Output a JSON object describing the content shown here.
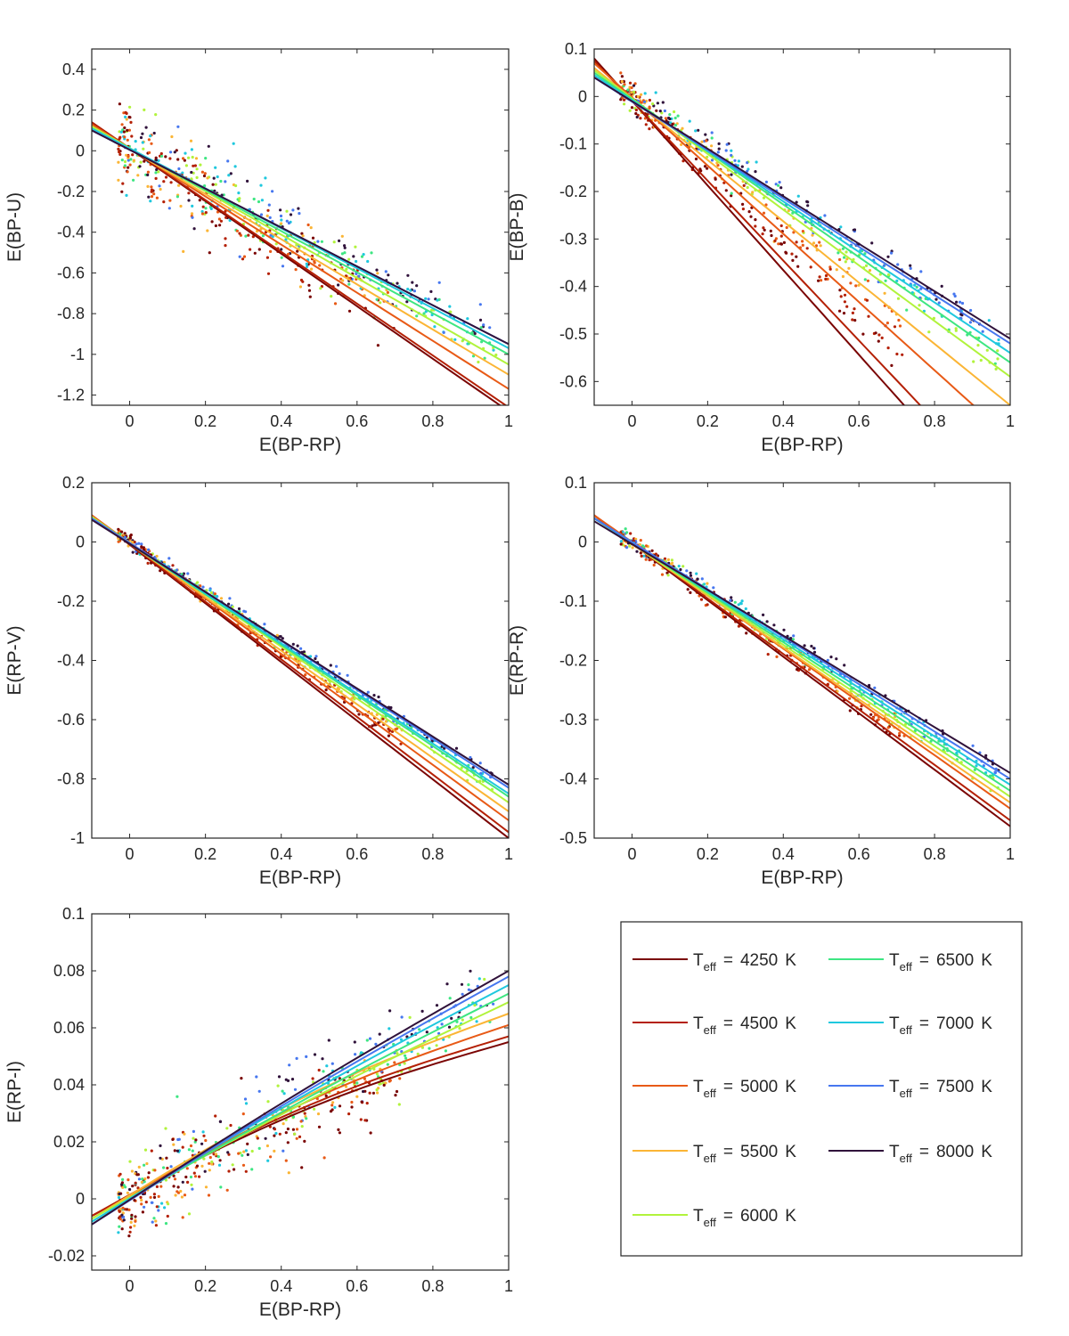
{
  "chart_data": [
    {
      "id": "bp_u",
      "type": "scatter",
      "xlabel": "E(BP-RP)",
      "ylabel": "E(BP-U)",
      "xlim": [
        -0.1,
        1.0
      ],
      "ylim": [
        -1.25,
        0.5
      ],
      "xticks": [
        0,
        0.2,
        0.4,
        0.6,
        0.8,
        1
      ],
      "yticks": [
        0.4,
        0.2,
        0,
        -0.2,
        -0.4,
        -0.6,
        -0.8,
        -1,
        -1.2
      ],
      "grid": false,
      "fit_lines_at_x1": [
        -1.28,
        -1.26,
        -1.17,
        -1.1,
        -1.05,
        -1.0,
        -0.97,
        -0.95,
        -0.95
      ],
      "fit_lines_at_xmin": [
        0.14,
        0.14,
        0.13,
        0.12,
        0.12,
        0.11,
        0.11,
        0.1,
        0.1
      ],
      "scatter_slope": [
        -1.2,
        -1.15,
        -1.1,
        -1.05,
        -1.02,
        -1.0,
        -0.98,
        -0.96,
        -0.95
      ],
      "scatter_spread": 0.07
    },
    {
      "id": "bp_b",
      "type": "scatter",
      "xlabel": "E(BP-RP)",
      "ylabel": "E(BP-B)",
      "xlim": [
        -0.1,
        1.0
      ],
      "ylim": [
        -0.65,
        0.1
      ],
      "xticks": [
        0,
        0.2,
        0.4,
        0.6,
        0.8,
        1
      ],
      "yticks": [
        0.1,
        0,
        -0.1,
        -0.2,
        -0.3,
        -0.4,
        -0.5,
        -0.6
      ],
      "grid": false,
      "fit_lines_at_x1": [
        -0.9,
        -0.85,
        -0.72,
        -0.65,
        -0.59,
        -0.56,
        -0.54,
        -0.52,
        -0.51
      ],
      "fit_lines_at_xmin": [
        0.08,
        0.075,
        0.07,
        0.06,
        0.055,
        0.05,
        0.045,
        0.04,
        0.04
      ],
      "scatter_slope": [
        -0.8,
        -0.75,
        -0.68,
        -0.62,
        -0.58,
        -0.56,
        -0.54,
        -0.52,
        -0.51
      ],
      "scatter_spread": 0.018
    },
    {
      "id": "rp_v",
      "type": "scatter",
      "xlabel": "E(BP-RP)",
      "ylabel": "E(RP-V)",
      "xlim": [
        -0.1,
        1.0
      ],
      "ylim": [
        -1.0,
        0.2
      ],
      "xticks": [
        0,
        0.2,
        0.4,
        0.6,
        0.8,
        1
      ],
      "yticks": [
        0.2,
        0,
        -0.2,
        -0.4,
        -0.6,
        -0.8,
        -1
      ],
      "grid": false,
      "fit_lines_at_x1": [
        -1.0,
        -0.98,
        -0.94,
        -0.91,
        -0.88,
        -0.86,
        -0.85,
        -0.83,
        -0.82
      ],
      "fit_lines_at_xmin": [
        0.09,
        0.09,
        0.09,
        0.085,
        0.085,
        0.08,
        0.08,
        0.08,
        0.075
      ],
      "scatter_slope": [
        -0.95,
        -0.93,
        -0.91,
        -0.89,
        -0.87,
        -0.86,
        -0.85,
        -0.83,
        -0.82
      ],
      "scatter_spread": 0.012
    },
    {
      "id": "rp_r",
      "type": "scatter",
      "xlabel": "E(BP-RP)",
      "ylabel": "E(RP-R)",
      "xlim": [
        -0.1,
        1.0
      ],
      "ylim": [
        -0.5,
        0.1
      ],
      "xticks": [
        0,
        0.2,
        0.4,
        0.6,
        0.8,
        1
      ],
      "yticks": [
        0.1,
        0,
        -0.1,
        -0.2,
        -0.3,
        -0.4,
        -0.5
      ],
      "grid": false,
      "fit_lines_at_x1": [
        -0.48,
        -0.47,
        -0.45,
        -0.44,
        -0.43,
        -0.42,
        -0.41,
        -0.4,
        -0.39
      ],
      "fit_lines_at_xmin": [
        0.045,
        0.045,
        0.045,
        0.04,
        0.04,
        0.04,
        0.04,
        0.04,
        0.035
      ],
      "scatter_slope": [
        -0.47,
        -0.46,
        -0.45,
        -0.44,
        -0.43,
        -0.42,
        -0.41,
        -0.4,
        -0.39
      ],
      "scatter_spread": 0.008
    },
    {
      "id": "rp_i",
      "type": "scatter",
      "xlabel": "E(BP-RP)",
      "ylabel": "E(RP-I)",
      "xlim": [
        -0.1,
        1.0
      ],
      "ylim": [
        -0.025,
        0.1
      ],
      "xticks": [
        0,
        0.2,
        0.4,
        0.6,
        0.8,
        1
      ],
      "yticks": [
        0.1,
        0.08,
        0.06,
        0.04,
        0.02,
        0,
        -0.02
      ],
      "grid": false,
      "fit_lines_at_x1": [
        0.055,
        0.057,
        0.061,
        0.065,
        0.069,
        0.072,
        0.075,
        0.078,
        0.08
      ],
      "fit_lines_at_xmin": [
        -0.006,
        -0.006,
        -0.007,
        -0.007,
        -0.007,
        -0.008,
        -0.008,
        -0.009,
        -0.009
      ],
      "scatter_slope": [
        0.06,
        0.062,
        0.065,
        0.068,
        0.071,
        0.074,
        0.076,
        0.078,
        0.08
      ],
      "scatter_spread": 0.006
    }
  ],
  "legend": {
    "placement": "bottom-right",
    "symbol_base": "T",
    "symbol_sub": "eff",
    "equals": "=",
    "unit": "K",
    "entries": [
      {
        "teff": "4250",
        "color": "#7a0403"
      },
      {
        "teff": "4500",
        "color": "#b42005"
      },
      {
        "teff": "5000",
        "color": "#e85a16"
      },
      {
        "teff": "5500",
        "color": "#fbb535"
      },
      {
        "teff": "6000",
        "color": "#b1f33c"
      },
      {
        "teff": "6500",
        "color": "#3ee682"
      },
      {
        "teff": "7000",
        "color": "#1fc8de"
      },
      {
        "teff": "7500",
        "color": "#4777ef"
      },
      {
        "teff": "8000",
        "color": "#30123b"
      }
    ]
  }
}
